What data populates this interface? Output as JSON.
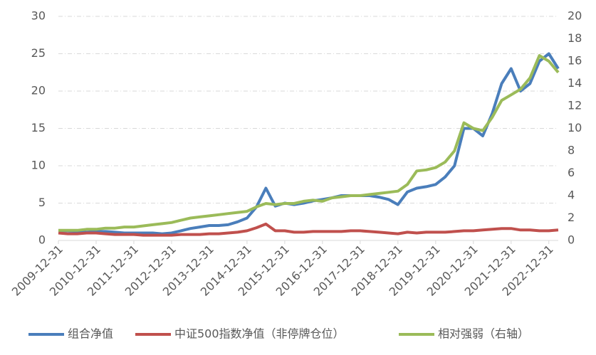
{
  "chart_data": {
    "type": "line",
    "categories": [
      "2009-12-31",
      null,
      null,
      null,
      "2010-12-31",
      null,
      null,
      null,
      "2011-12-31",
      null,
      null,
      null,
      "2012-12-31",
      null,
      null,
      null,
      "2013-12-31",
      null,
      null,
      null,
      "2014-12-31",
      null,
      null,
      null,
      "2015-12-31",
      null,
      null,
      null,
      "2016-12-31",
      null,
      null,
      null,
      "2017-12-31",
      null,
      null,
      null,
      "2018-12-31",
      null,
      null,
      null,
      "2019-12-31",
      null,
      null,
      null,
      "2020-12-31",
      null,
      null,
      null,
      "2021-12-31",
      null,
      null,
      null,
      "2022-12-31",
      null
    ],
    "series": [
      {
        "name": "组合净值",
        "color": "#4a7ebb",
        "values": [
          1.3,
          1.3,
          1.2,
          1.1,
          1.2,
          1.2,
          1.1,
          1.0,
          1.0,
          1.0,
          1.0,
          0.9,
          1.0,
          1.3,
          1.6,
          1.8,
          2.0,
          2.0,
          2.1,
          2.5,
          3.0,
          4.5,
          7.0,
          4.6,
          5.0,
          4.8,
          5.0,
          5.3,
          5.5,
          5.7,
          6.0,
          6.0,
          6.0,
          6.0,
          5.8,
          5.5,
          4.8,
          6.5,
          7.0,
          7.2,
          7.5,
          8.5,
          10.0,
          15.0,
          15.0,
          14.0,
          17.0,
          21.0,
          23.0,
          20.0,
          21.0,
          24.0,
          25.0,
          23.0
        ]
      },
      {
        "name": "中证500指数净值（非停牌仓位）",
        "color": "#c0504d",
        "values": [
          1.0,
          0.9,
          0.9,
          1.0,
          1.0,
          0.9,
          0.8,
          0.8,
          0.8,
          0.7,
          0.7,
          0.7,
          0.7,
          0.8,
          0.8,
          0.8,
          0.9,
          0.9,
          1.0,
          1.1,
          1.3,
          1.7,
          2.2,
          1.3,
          1.3,
          1.1,
          1.1,
          1.2,
          1.2,
          1.2,
          1.2,
          1.3,
          1.3,
          1.2,
          1.1,
          1.0,
          0.9,
          1.1,
          1.0,
          1.1,
          1.1,
          1.1,
          1.2,
          1.3,
          1.3,
          1.4,
          1.5,
          1.6,
          1.6,
          1.4,
          1.4,
          1.3,
          1.3,
          1.4
        ]
      },
      {
        "name": "相对强弱（右轴）",
        "color": "#9bbb59",
        "axis": "y2",
        "values": [
          0.9,
          0.9,
          0.9,
          1.0,
          1.0,
          1.1,
          1.1,
          1.2,
          1.2,
          1.3,
          1.4,
          1.5,
          1.6,
          1.8,
          2.0,
          2.1,
          2.2,
          2.3,
          2.4,
          2.5,
          2.6,
          3.0,
          3.3,
          3.2,
          3.3,
          3.3,
          3.5,
          3.6,
          3.5,
          3.8,
          3.9,
          4.0,
          4.0,
          4.1,
          4.2,
          4.3,
          4.4,
          5.0,
          6.2,
          6.3,
          6.5,
          7.0,
          8.0,
          10.5,
          10.0,
          9.8,
          11.0,
          12.5,
          13.0,
          13.5,
          14.5,
          16.5,
          16.0,
          15.0
        ]
      }
    ],
    "ylim": [
      0,
      30
    ],
    "yticks": [
      0,
      5,
      10,
      15,
      20,
      25,
      30
    ],
    "y2lim": [
      0,
      20
    ],
    "y2ticks": [
      0,
      2,
      4,
      6,
      8,
      10,
      12,
      14,
      16,
      18,
      20
    ],
    "grid": true,
    "legend": "bottom"
  }
}
